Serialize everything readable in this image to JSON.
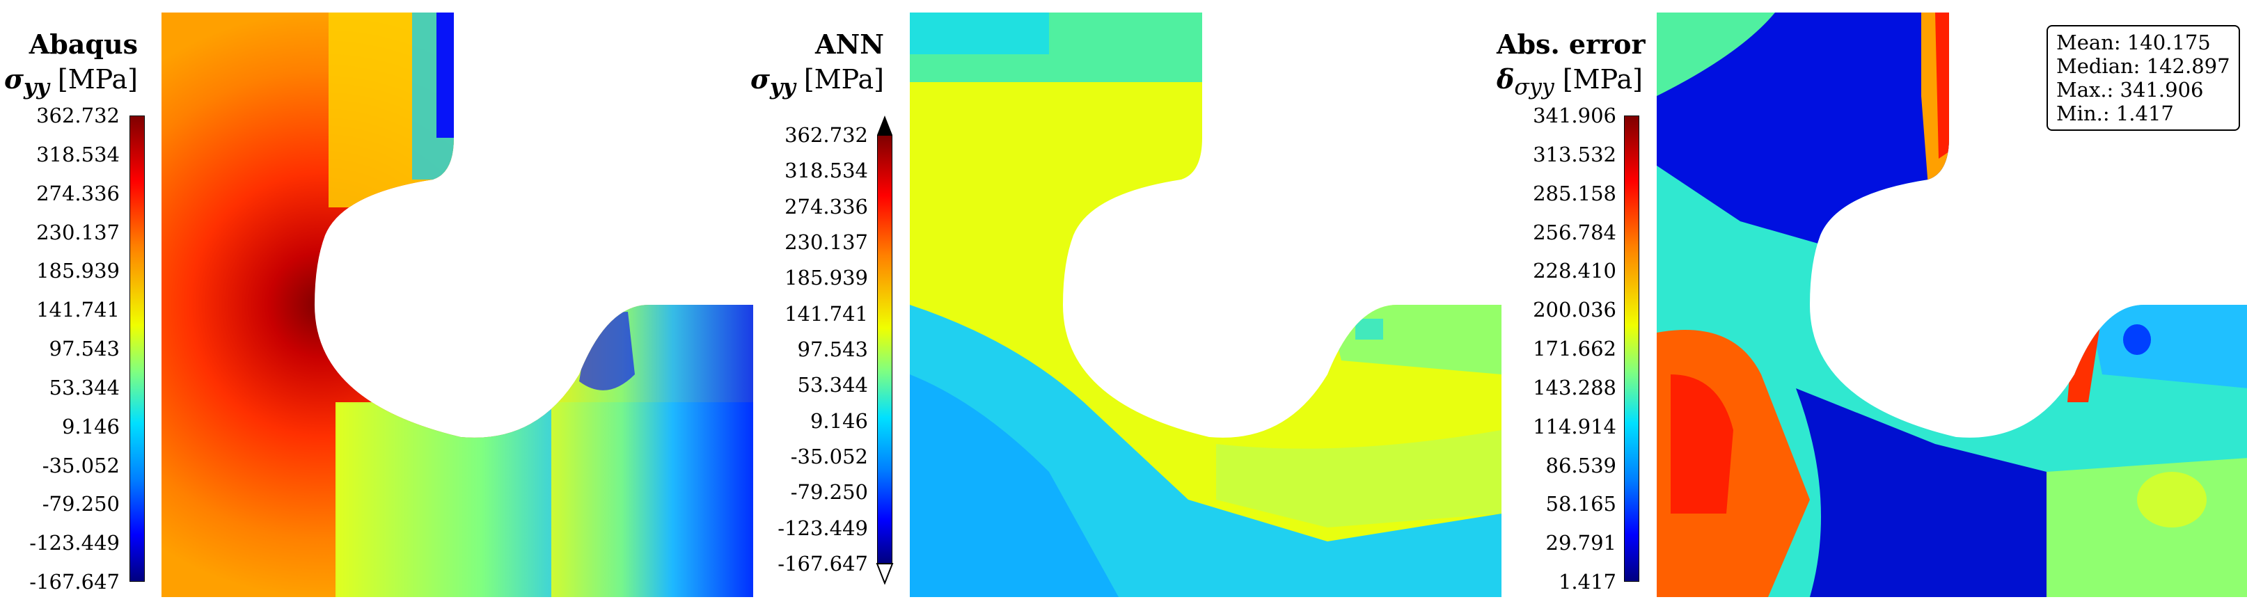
{
  "panels": [
    {
      "title": "Abaqus",
      "symbol": "σ",
      "symbol_sub": "yy",
      "unit": "[MPa]",
      "colorbar_ticks": [
        "362.732",
        "318.534",
        "274.336",
        "230.137",
        "185.939",
        "141.741",
        "97.543",
        "53.344",
        "9.146",
        "-35.052",
        "-79.250",
        "-123.449",
        "-167.647"
      ]
    },
    {
      "title": "ANN",
      "symbol": "σ",
      "symbol_sub": "yy",
      "unit": "[MPa]",
      "colorbar_ticks": [
        "362.732",
        "318.534",
        "274.336",
        "230.137",
        "185.939",
        "141.741",
        "97.543",
        "53.344",
        "9.146",
        "-35.052",
        "-79.250",
        "-123.449",
        "-167.647"
      ]
    },
    {
      "title": "Abs. error",
      "symbol": "δ",
      "symbol_sub": "σyy",
      "unit": "[MPa]",
      "colorbar_ticks": [
        "341.906",
        "313.532",
        "285.158",
        "256.784",
        "228.410",
        "200.036",
        "171.662",
        "143.288",
        "114.914",
        "86.539",
        "58.165",
        "29.791",
        "1.417"
      ]
    }
  ],
  "stats": {
    "mean": "Mean: 140.175",
    "median": "Median: 142.897",
    "max": "Max.: 341.906",
    "min": "Min.: 1.417"
  },
  "colors": {
    "dark_red": "#7f0000",
    "red": "#ff0000",
    "yellow": "#f0ff00",
    "cyan": "#00e0ff",
    "blue": "#0000ff",
    "dark_blue": "#00007f"
  }
}
